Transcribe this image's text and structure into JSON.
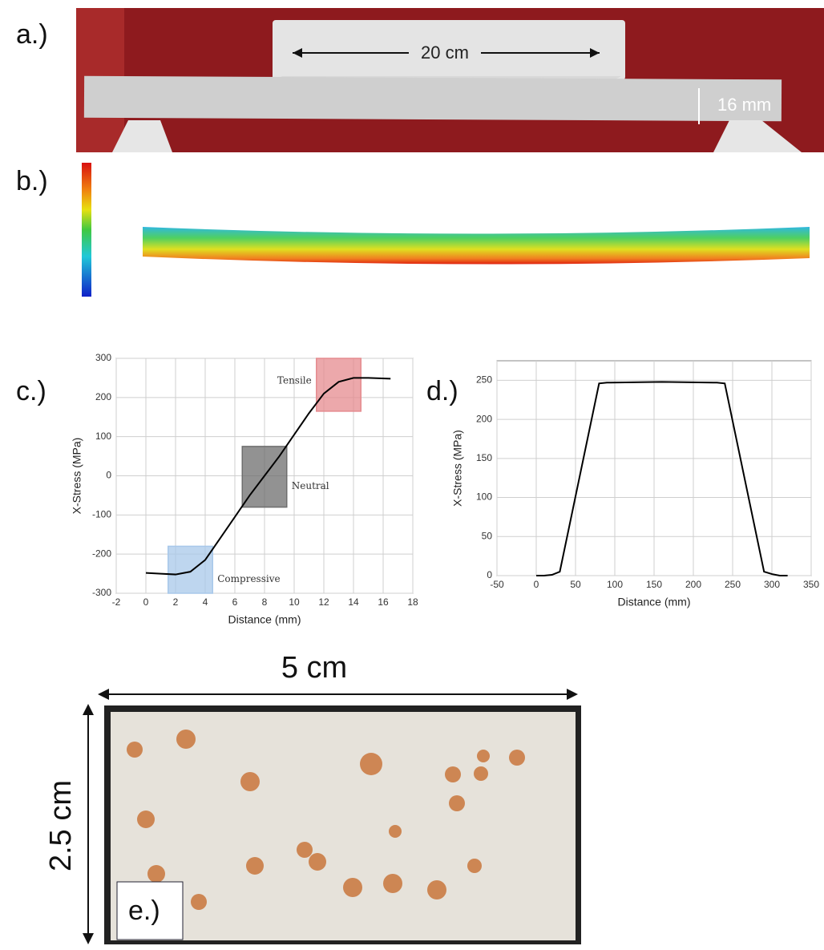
{
  "panel_labels": [
    "a.)",
    "b.)",
    "c.)",
    "d.)",
    "e.)"
  ],
  "photo_a": {
    "span_label": "20 cm",
    "thickness_label": "16 mm"
  },
  "photo_e": {
    "width_label": "5 cm",
    "height_label": "2.5 cm"
  },
  "chart_data": [
    {
      "type": "line",
      "xlabel": "Distance (mm)",
      "ylabel": "X-Stress (MPa)",
      "xlim": [
        -2,
        18
      ],
      "xticks": [
        -2,
        0,
        2,
        4,
        6,
        8,
        10,
        12,
        14,
        16,
        18
      ],
      "ylim": [
        -300,
        300
      ],
      "yticks": [
        -300,
        -200,
        -100,
        0,
        100,
        200,
        300
      ],
      "grid": true,
      "series": [
        {
          "color": "#000000",
          "x": [
            0,
            1,
            2,
            3,
            4,
            5,
            6,
            7,
            8,
            9,
            10,
            11,
            12,
            13,
            14,
            15,
            16.5
          ],
          "values": [
            -248,
            -250,
            -252,
            -245,
            -215,
            -160,
            -105,
            -50,
            0,
            50,
            105,
            160,
            210,
            240,
            250,
            250,
            248
          ]
        }
      ],
      "regions": [
        {
          "label": "Compressive",
          "x": [
            1.5,
            4.5
          ],
          "y": [
            -300,
            -180
          ],
          "color": "#a8c8ea"
        },
        {
          "label": "Neutral",
          "x": [
            6.5,
            9.5
          ],
          "y": [
            -80,
            75
          ],
          "color": "#6e6e6e"
        },
        {
          "label": "Tensile",
          "x": [
            11.5,
            14.5
          ],
          "y": [
            165,
            300
          ],
          "color": "#e58b8f"
        }
      ]
    },
    {
      "type": "line",
      "xlabel": "Distance (mm)",
      "ylabel": "X-Stress (MPa)",
      "xlim": [
        -50,
        350
      ],
      "xticks": [
        -50,
        0,
        50,
        100,
        150,
        200,
        250,
        300,
        350
      ],
      "ylim": [
        0,
        275
      ],
      "yticks": [
        0,
        50,
        100,
        150,
        200,
        250
      ],
      "grid": true,
      "series": [
        {
          "color": "#000000",
          "x": [
            0,
            10,
            20,
            30,
            80,
            90,
            160,
            230,
            240,
            290,
            300,
            310,
            320
          ],
          "values": [
            0,
            0,
            1,
            5,
            246,
            247,
            248,
            247,
            246,
            5,
            2,
            0,
            0
          ]
        }
      ]
    }
  ]
}
